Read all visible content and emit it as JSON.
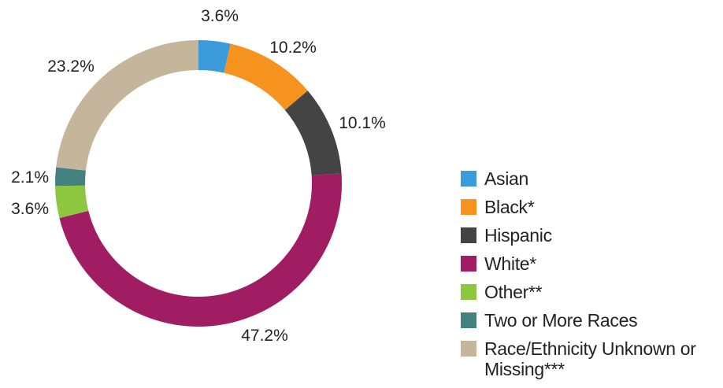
{
  "chart_data": {
    "type": "pie",
    "subtype": "donut",
    "title": "",
    "slices": [
      {
        "label": "Asian",
        "value": 3.6,
        "text": "3.6%",
        "color": "#3b9ad9"
      },
      {
        "label": "Black*",
        "value": 10.2,
        "text": "10.2%",
        "color": "#f6921e"
      },
      {
        "label": "Hispanic",
        "value": 10.1,
        "text": "10.1%",
        "color": "#444444"
      },
      {
        "label": "White*",
        "value": 47.2,
        "text": "47.2%",
        "color": "#a11d63"
      },
      {
        "label": "Other**",
        "value": 3.6,
        "text": "3.6%",
        "color": "#8dc63f"
      },
      {
        "label": "Two or More Races",
        "value": 2.1,
        "text": "2.1%",
        "color": "#448282"
      },
      {
        "label": "Race/Ethnicity Unknown or Missing***",
        "value": 23.2,
        "text": "23.2%",
        "color": "#c4b59b"
      }
    ],
    "legend_position": "right"
  },
  "legend": {
    "items": [
      {
        "label": "Asian",
        "color": "#3b9ad9"
      },
      {
        "label": "Black*",
        "color": "#f6921e"
      },
      {
        "label": "Hispanic",
        "color": "#444444"
      },
      {
        "label": "White*",
        "color": "#a11d63"
      },
      {
        "label": "Other**",
        "color": "#8dc63f"
      },
      {
        "label": "Two or More Races",
        "color": "#448282"
      },
      {
        "label": "Race/Ethnicity Unknown or Missing***",
        "color": "#c4b59b"
      }
    ]
  }
}
